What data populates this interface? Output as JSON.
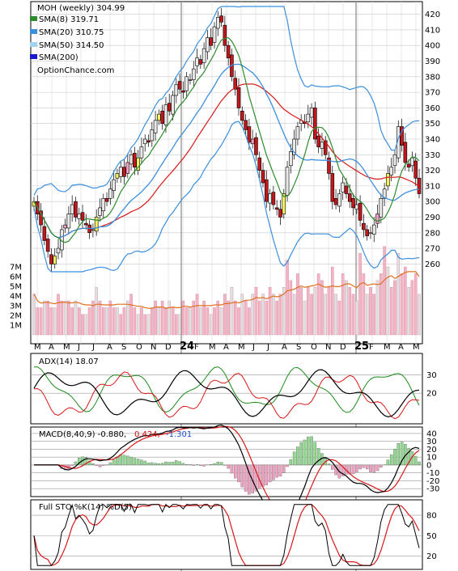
{
  "legend": {
    "title": "MOH (weekly) 304.99",
    "items": [
      {
        "label": "SMA(8) 319.71",
        "color": "#2e8b2e"
      },
      {
        "label": "SMA(20) 310.75",
        "color": "#3c8fdc"
      },
      {
        "label": "SMA(50) 314.50",
        "color": "#9fd3f0"
      },
      {
        "label": "SMA(200)",
        "color": "#1a1acc"
      }
    ],
    "source": "OptionChance.com"
  },
  "month_labels": [
    "M",
    "A",
    "M",
    "J",
    "J",
    "A",
    "S",
    "O",
    "N",
    "D",
    "24",
    "F",
    "M",
    "A",
    "M",
    "J",
    "J",
    "A",
    "S",
    "O",
    "N",
    "D",
    "25",
    "F",
    "M",
    "A",
    "M"
  ],
  "adx_label": "ADX(14) 18.07",
  "macd_label": "MACD(8,40,9) -0.880,",
  "macd_val1": "0.424,",
  "macd_val2": "-1.301",
  "sto_label": "Full STO %K(14) %D(5)",
  "colors": {
    "up": "#e8e8e8",
    "down": "#c0181c",
    "pink_up": "#f0a0c0",
    "yellow": "#f0f060",
    "sma8": "#2e8b2e",
    "sma20": "#3c8fdc",
    "sma50": "#9fd3f0",
    "red_line": "#d81818",
    "vol_avg": "#e07020",
    "volume": "#f4b4c4"
  },
  "chart_data": [
    {
      "type": "candlestick",
      "title": "MOH (weekly) 304.99",
      "ylim": [
        255,
        425
      ],
      "yticks": [
        260,
        270,
        280,
        290,
        300,
        310,
        320,
        330,
        340,
        350,
        360,
        370,
        380,
        390,
        400,
        410,
        420
      ],
      "weeks": 112,
      "close": [
        300,
        292,
        285,
        275,
        268,
        260,
        265,
        270,
        282,
        285,
        292,
        298,
        290,
        292,
        288,
        285,
        280,
        282,
        290,
        296,
        302,
        300,
        308,
        314,
        318,
        322,
        316,
        325,
        330,
        322,
        328,
        335,
        340,
        338,
        346,
        352,
        356,
        350,
        362,
        358,
        368,
        375,
        372,
        370,
        380,
        378,
        385,
        392,
        388,
        398,
        405,
        400,
        412,
        418,
        415,
        400,
        392,
        380,
        372,
        360,
        352,
        346,
        338,
        340,
        330,
        320,
        312,
        300,
        305,
        298,
        295,
        290,
        305,
        322,
        332,
        340,
        348,
        352,
        350,
        356,
        360,
        340,
        335,
        338,
        330,
        318,
        300,
        298,
        305,
        312,
        305,
        300,
        296,
        298,
        288,
        282,
        278,
        280,
        285,
        292,
        302,
        308,
        318,
        322,
        330,
        348,
        336,
        325,
        322,
        328,
        315,
        305
      ],
      "volume": [
        0.6,
        0.4,
        0.4,
        0.5,
        0.5,
        0.4,
        0.4,
        0.6,
        0.5,
        0.5,
        0.5,
        0.4,
        0.5,
        0.4,
        0.3,
        0.3,
        0.4,
        0.5,
        0.7,
        0.5,
        0.4,
        0.4,
        0.5,
        0.4,
        0.4,
        0.3,
        0.4,
        0.5,
        0.6,
        0.4,
        0.3,
        0.4,
        0.3,
        0.3,
        0.4,
        0.5,
        0.4,
        0.5,
        0.4,
        0.5,
        0.4,
        0.3,
        0.3,
        0.5,
        0.4,
        0.4,
        0.5,
        0.6,
        0.4,
        0.5,
        0.4,
        0.3,
        0.4,
        0.5,
        0.4,
        0.6,
        0.5,
        0.7,
        0.5,
        0.4,
        0.6,
        0.5,
        0.4,
        0.6,
        0.7,
        0.5,
        0.6,
        0.5,
        0.7,
        0.6,
        0.5,
        0.6,
        0.7,
        1.1,
        0.8,
        0.6,
        0.9,
        0.7,
        0.5,
        0.7,
        0.6,
        0.7,
        0.9,
        0.8,
        0.6,
        0.7,
        1.0,
        0.6,
        0.5,
        0.9,
        0.8,
        0.7,
        0.6,
        0.5,
        1.2,
        0.9,
        0.6,
        0.7,
        0.6,
        0.8,
        0.9,
        1.3,
        1.0,
        0.7,
        0.8,
        1.2,
        0.9,
        1.0,
        0.7,
        0.8,
        0.9,
        0.6
      ],
      "vticks": [
        "1M",
        "2M",
        "3M",
        "4M",
        "5M",
        "6M",
        "7M"
      ]
    },
    {
      "type": "line",
      "title": "ADX(14) 18.07",
      "yticks": [
        20,
        30
      ],
      "ylim": [
        5,
        40
      ]
    },
    {
      "type": "bar",
      "title": "MACD(8,40,9)",
      "yticks": [
        40,
        30,
        20,
        10,
        0,
        -10,
        -20,
        -30
      ],
      "ylim": [
        -36,
        44
      ]
    },
    {
      "type": "line",
      "title": "Full STO %K(14) %D(5)",
      "yticks": [
        20,
        50,
        80
      ],
      "ylim": [
        5,
        98
      ]
    }
  ]
}
